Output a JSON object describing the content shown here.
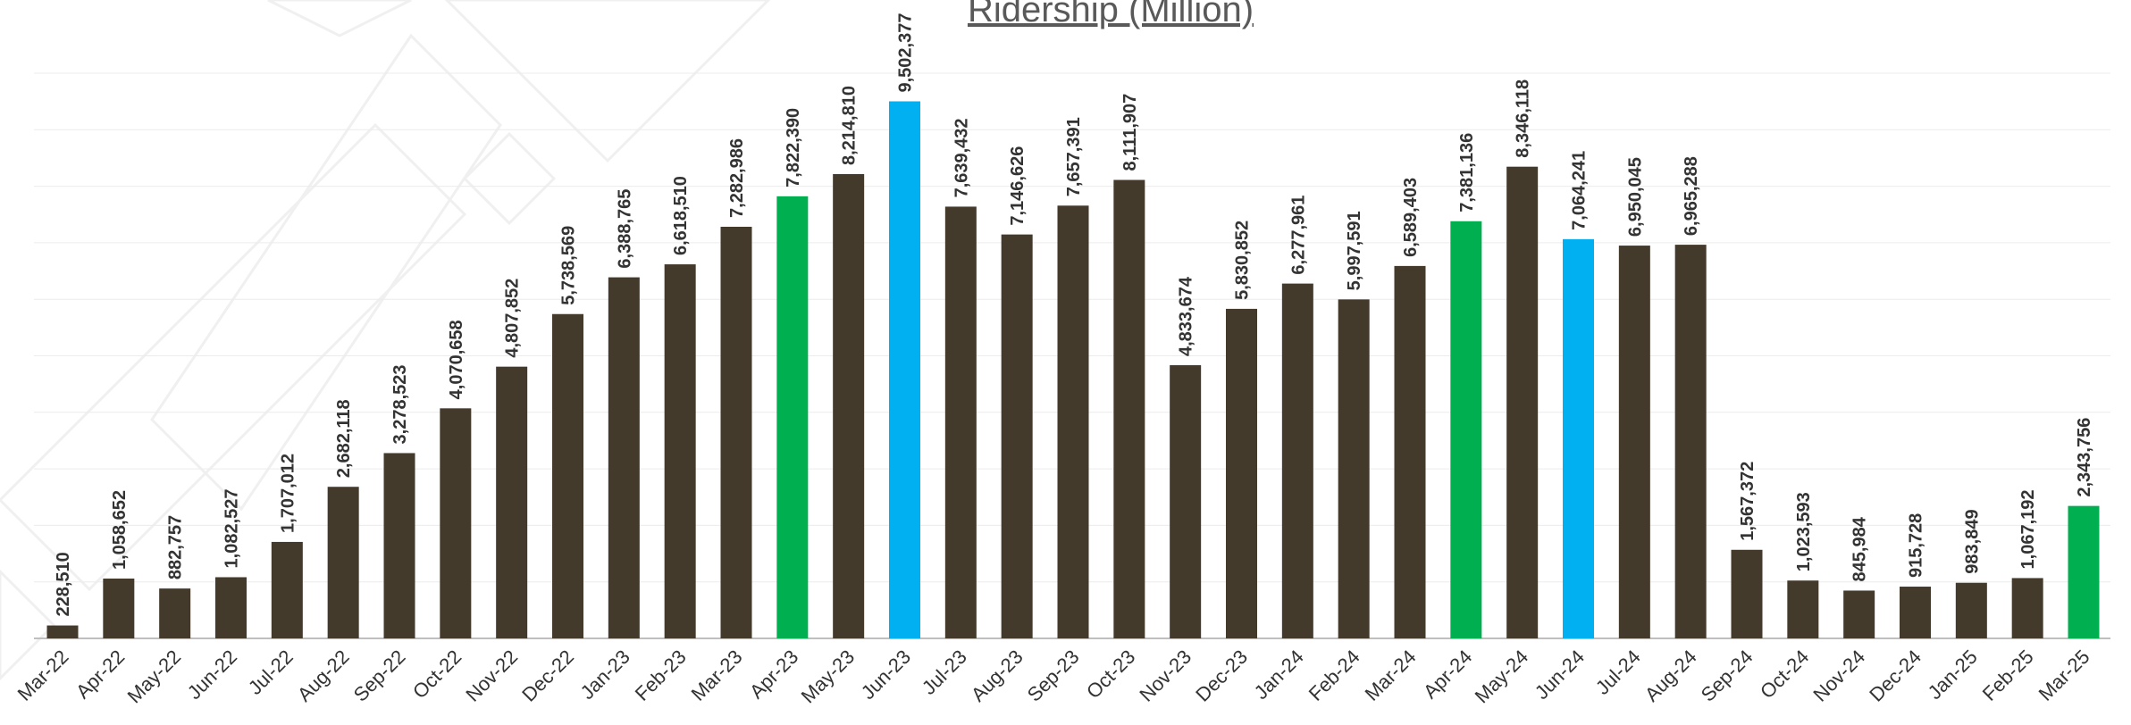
{
  "chart_data": {
    "type": "bar",
    "title": "Ridership (Million)",
    "categories": [
      "Mar-22",
      "Apr-22",
      "May-22",
      "Jun-22",
      "Jul-22",
      "Aug-22",
      "Sep-22",
      "Oct-22",
      "Nov-22",
      "Dec-22",
      "Jan-23",
      "Feb-23",
      "Mar-23",
      "Apr-23",
      "May-23",
      "Jun-23",
      "Jul-23",
      "Aug-23",
      "Sep-23",
      "Oct-23",
      "Nov-23",
      "Dec-23",
      "Jan-24",
      "Feb-24",
      "Mar-24",
      "Apr-24",
      "May-24",
      "Jun-24",
      "Jul-24",
      "Aug-24",
      "Sep-24",
      "Oct-24",
      "Nov-24",
      "Dec-24",
      "Jan-25",
      "Feb-25",
      "Mar-25"
    ],
    "values": [
      228510,
      1058652,
      882757,
      1082527,
      1707012,
      2682118,
      3278523,
      4070658,
      4807852,
      5738569,
      6388765,
      6618510,
      7282986,
      7822390,
      8214810,
      9502377,
      7639432,
      7146626,
      7657391,
      8111907,
      4833674,
      5830852,
      6277961,
      5997591,
      6589403,
      7381136,
      8346118,
      7064241,
      6950045,
      6965288,
      1567372,
      1023593,
      845984,
      915728,
      983849,
      1067192,
      2343756
    ],
    "value_labels": [
      "228,510",
      "1,058,652",
      "882,757",
      "1,082,527",
      "1,707,012",
      "2,682,118",
      "3,278,523",
      "4,070,658",
      "4,807,852",
      "5,738,569",
      "6,388,765",
      "6,618,510",
      "7,282,986",
      "7,822,390",
      "8,214,810",
      "9,502,377",
      "7,639,432",
      "7,146,626",
      "7,657,391",
      "8,111,907",
      "4,833,674",
      "5,830,852",
      "6,277,961",
      "5,997,591",
      "6,589,403",
      "7,381,136",
      "8,346,118",
      "7,064,241",
      "6,950,045",
      "6,965,288",
      "1,567,372",
      "1,023,593",
      "845,984",
      "915,728",
      "983,849",
      "1,067,192",
      "2,343,756"
    ],
    "colors": [
      "#433a2b",
      "#433a2b",
      "#433a2b",
      "#433a2b",
      "#433a2b",
      "#433a2b",
      "#433a2b",
      "#433a2b",
      "#433a2b",
      "#433a2b",
      "#433a2b",
      "#433a2b",
      "#433a2b",
      "#00b050",
      "#433a2b",
      "#00b0f0",
      "#433a2b",
      "#433a2b",
      "#433a2b",
      "#433a2b",
      "#433a2b",
      "#433a2b",
      "#433a2b",
      "#433a2b",
      "#433a2b",
      "#00b050",
      "#433a2b",
      "#00b0f0",
      "#433a2b",
      "#433a2b",
      "#433a2b",
      "#433a2b",
      "#433a2b",
      "#433a2b",
      "#433a2b",
      "#433a2b",
      "#00b050"
    ],
    "ylim": [
      0,
      10000000
    ],
    "yticks": [
      0,
      1000000,
      2000000,
      3000000,
      4000000,
      5000000,
      6000000,
      7000000,
      8000000,
      9000000,
      10000000
    ],
    "grid": true
  }
}
